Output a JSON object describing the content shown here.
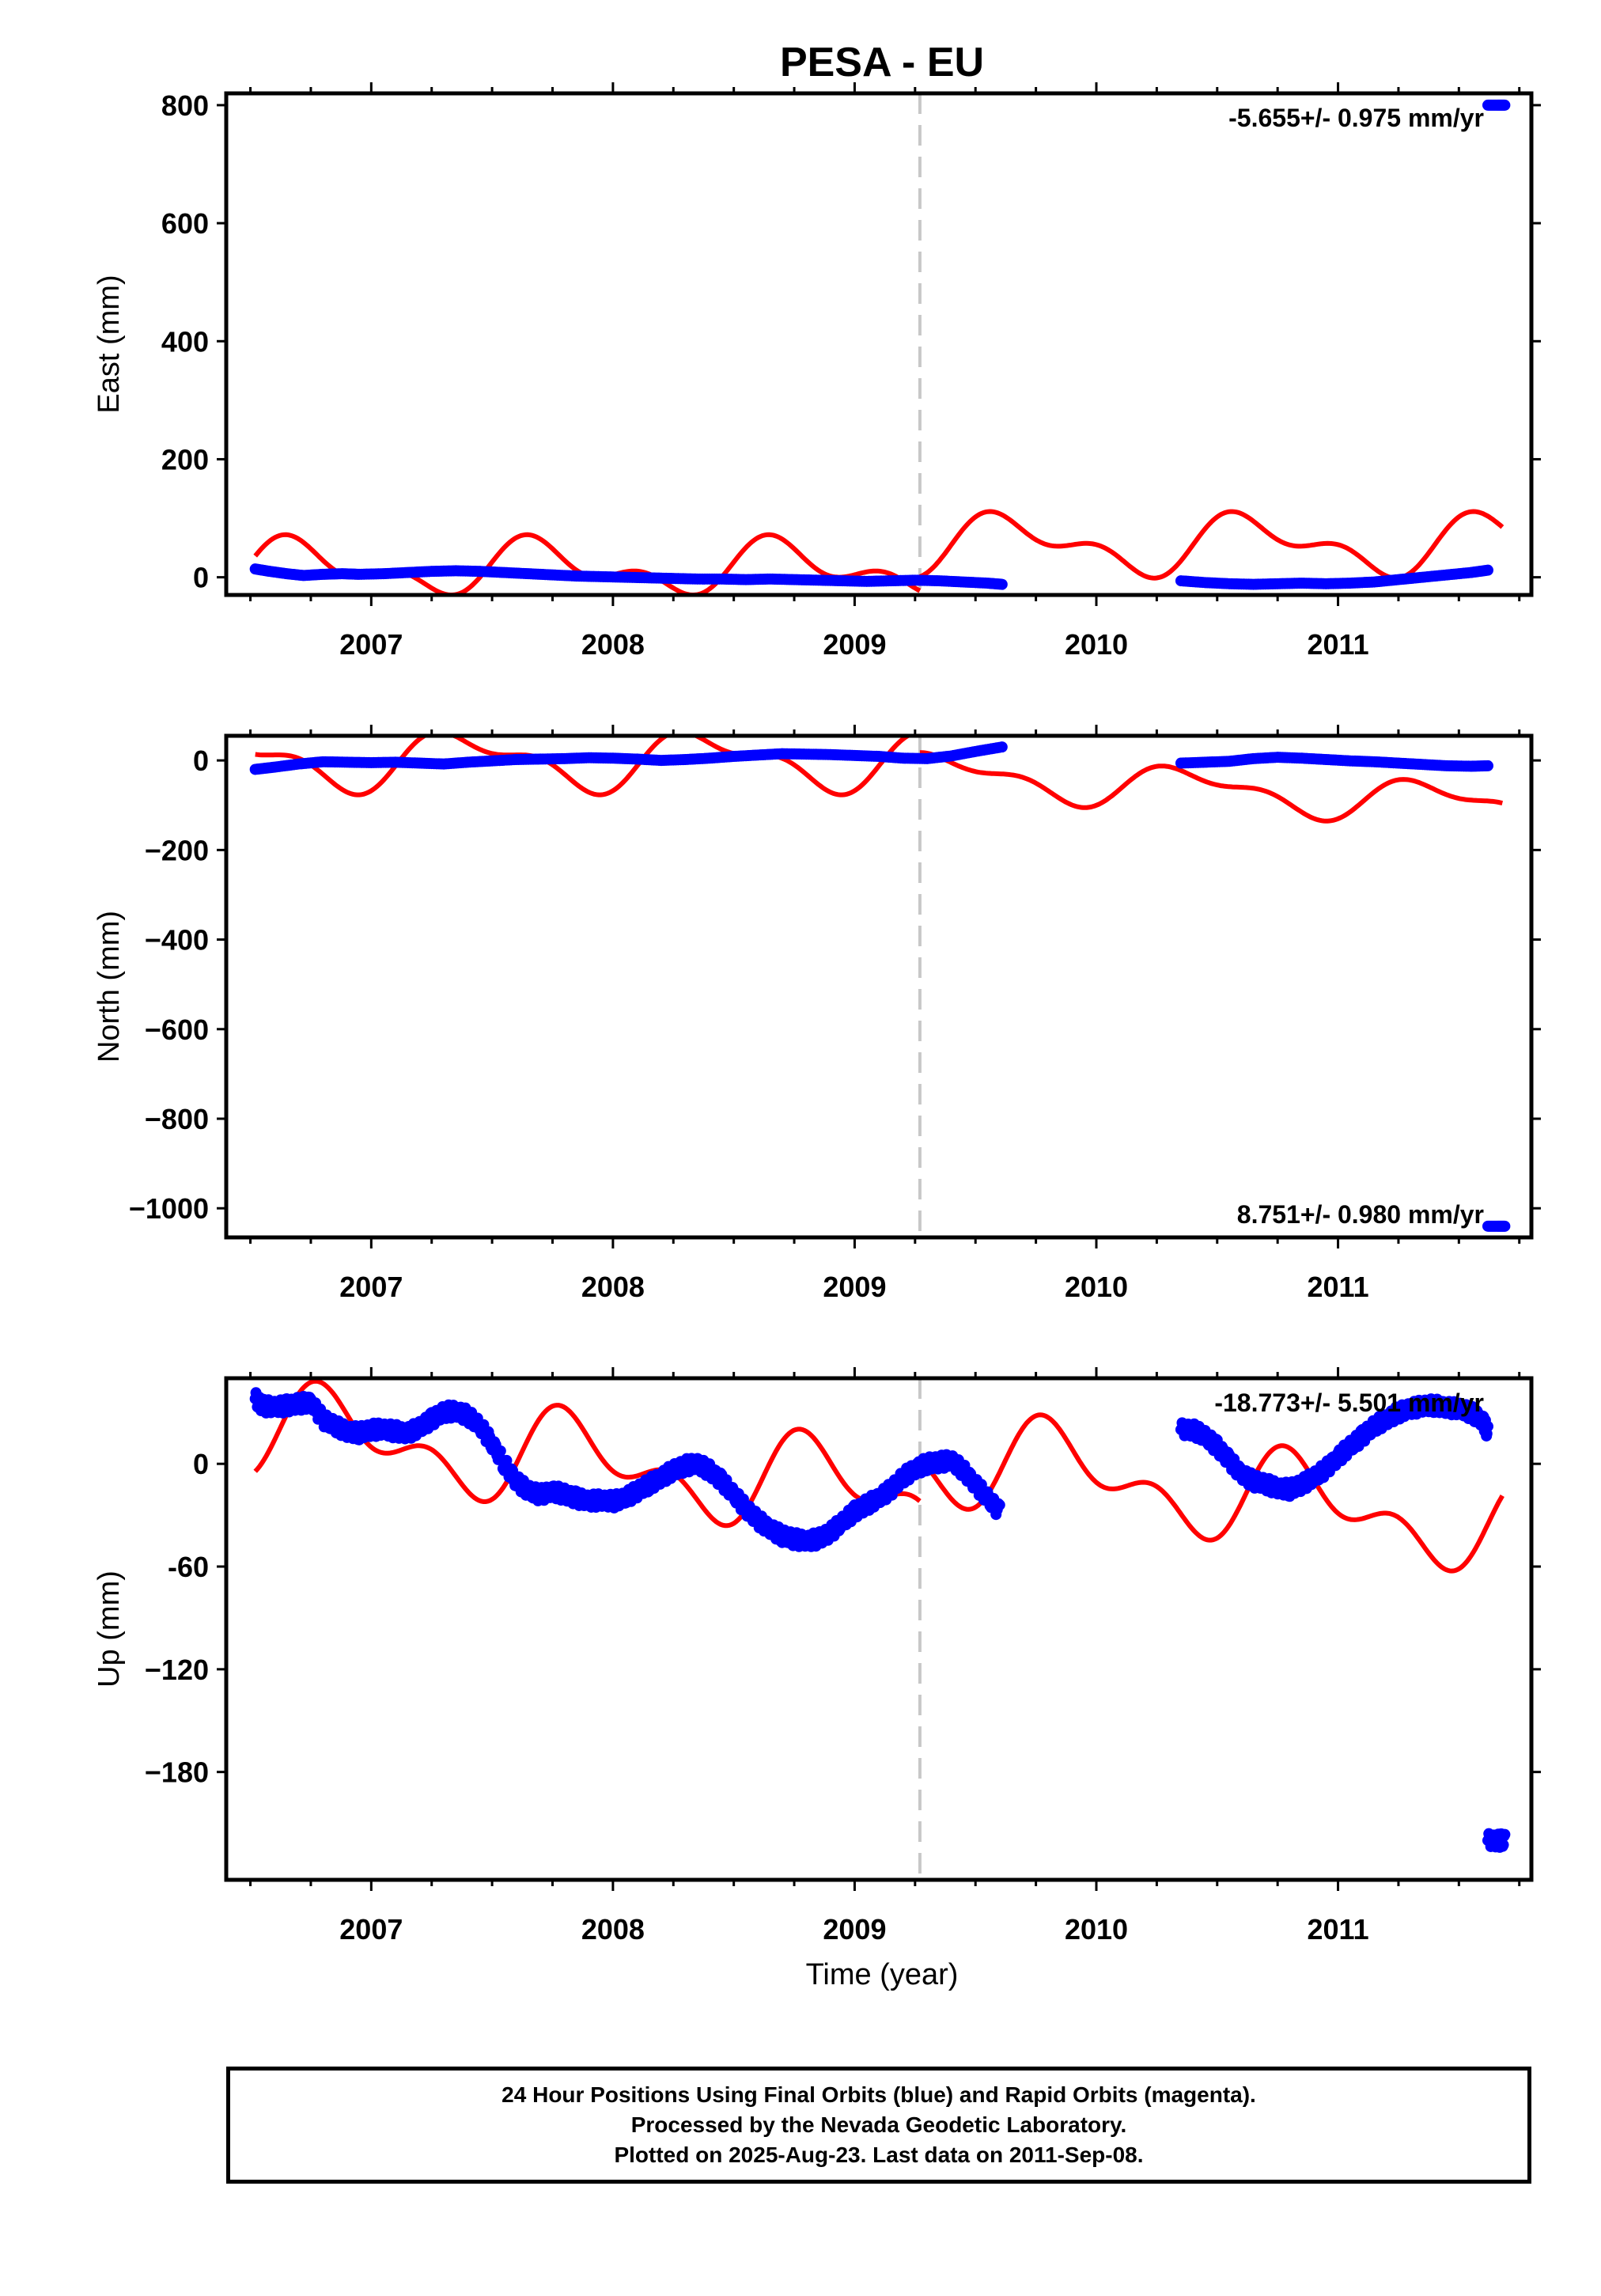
{
  "title": "PESA - EU",
  "colors": {
    "final": "#0000ff",
    "model": "#ff0000",
    "break": "#c8c8c8",
    "frame": "#000000"
  },
  "chart_data": [
    {
      "type": "scatter",
      "panel": "east",
      "ylabel": "East (mm)",
      "ylim": [
        -30,
        820
      ],
      "yticks": [
        0,
        200,
        400,
        600,
        800
      ],
      "ytick_labels": [
        "0",
        "200",
        "400",
        "600",
        "800"
      ],
      "xlim": [
        2006.4,
        2011.8
      ],
      "xticks": [
        2007,
        2008,
        2009,
        2010,
        2011
      ],
      "xtick_labels": [
        "2007",
        "2008",
        "2009",
        "2010",
        "2011"
      ],
      "rate_label": "-5.655+/- 0.975 mm/yr",
      "break_epoch": 2009.27,
      "series": [
        {
          "role": "final orbits",
          "color": "blue",
          "segments": [
            {
              "x": [
                2006.52,
                2006.58,
                2006.65,
                2006.72,
                2006.8,
                2006.88,
                2006.95,
                2007.05,
                2007.15,
                2007.25,
                2007.35,
                2007.45,
                2007.55,
                2007.65,
                2007.75,
                2007.85,
                2007.95,
                2008.05,
                2008.15,
                2008.25,
                2008.35,
                2008.45,
                2008.55,
                2008.65,
                2008.75,
                2008.85,
                2008.95,
                2009.05,
                2009.15,
                2009.25,
                2009.35,
                2009.45,
                2009.55,
                2009.61
              ],
              "y": [
                14,
                10,
                6,
                3,
                5,
                6,
                5,
                6,
                8,
                10,
                11,
                10,
                8,
                6,
                4,
                2,
                1,
                0,
                -1,
                -2,
                -3,
                -3,
                -4,
                -3,
                -4,
                -5,
                -6,
                -7,
                -6,
                -5,
                -6,
                -8,
                -10,
                -12
              ]
            },
            {
              "x": [
                2010.35,
                2010.45,
                2010.55,
                2010.65,
                2010.75,
                2010.85,
                2010.95,
                2011.05,
                2011.15,
                2011.25,
                2011.35,
                2011.45,
                2011.55,
                2011.62
              ],
              "y": [
                -6,
                -9,
                -11,
                -12,
                -11,
                -10,
                -11,
                -10,
                -8,
                -4,
                0,
                4,
                8,
                12
              ]
            }
          ]
        },
        {
          "role": "rapid orbits",
          "color": "blue",
          "segments": [
            {
              "x": [
                2011.62,
                2011.66,
                2011.69
              ],
              "y": [
                800,
                800,
                800
              ]
            }
          ]
        }
      ]
    },
    {
      "type": "scatter",
      "panel": "north",
      "ylabel": "North (mm)",
      "ylim": [
        -1065,
        55
      ],
      "yticks": [
        0,
        -200,
        -400,
        -600,
        -800,
        -1000
      ],
      "ytick_labels": [
        "0",
        "−200",
        "−400",
        "−600",
        "−800",
        "−1000"
      ],
      "xlim": [
        2006.4,
        2011.8
      ],
      "xticks": [
        2007,
        2008,
        2009,
        2010,
        2011
      ],
      "xtick_labels": [
        "2007",
        "2008",
        "2009",
        "2010",
        "2011"
      ],
      "rate_label": "8.751+/- 0.980 mm/yr",
      "break_epoch": 2009.27,
      "series": [
        {
          "role": "final orbits",
          "color": "blue",
          "segments": [
            {
              "x": [
                2006.52,
                2006.6,
                2006.7,
                2006.8,
                2006.9,
                2007.0,
                2007.1,
                2007.2,
                2007.3,
                2007.4,
                2007.5,
                2007.6,
                2007.7,
                2007.8,
                2007.9,
                2008.0,
                2008.1,
                2008.2,
                2008.3,
                2008.4,
                2008.5,
                2008.6,
                2008.7,
                2008.8,
                2008.9,
                2009.0,
                2009.1,
                2009.2,
                2009.3,
                2009.4,
                2009.5,
                2009.61
              ],
              "y": [
                -20,
                -15,
                -8,
                -3,
                -4,
                -5,
                -4,
                -6,
                -8,
                -4,
                -1,
                2,
                3,
                4,
                6,
                5,
                3,
                0,
                2,
                5,
                9,
                12,
                15,
                14,
                13,
                11,
                9,
                5,
                4,
                10,
                20,
                30
              ]
            },
            {
              "x": [
                2010.35,
                2010.45,
                2010.55,
                2010.65,
                2010.75,
                2010.85,
                2010.95,
                2011.05,
                2011.15,
                2011.25,
                2011.35,
                2011.45,
                2011.55,
                2011.62
              ],
              "y": [
                -6,
                -4,
                -2,
                4,
                7,
                5,
                2,
                -1,
                -3,
                -6,
                -9,
                -12,
                -13,
                -12
              ]
            }
          ]
        },
        {
          "role": "rapid orbits",
          "color": "blue",
          "segments": [
            {
              "x": [
                2011.62,
                2011.66,
                2011.69
              ],
              "y": [
                -1040,
                -1040,
                -1040
              ]
            }
          ]
        }
      ]
    },
    {
      "type": "scatter",
      "panel": "up",
      "ylabel": "Up (mm)",
      "ylim": [
        -243,
        50
      ],
      "yticks": [
        0,
        -60,
        -120,
        -180
      ],
      "ytick_labels": [
        "0",
        "-60",
        "−120",
        "−180"
      ],
      "xlim": [
        2006.4,
        2011.8
      ],
      "xticks": [
        2007,
        2008,
        2009,
        2010,
        2011
      ],
      "xtick_labels": [
        "2007",
        "2008",
        "2009",
        "2010",
        "2011"
      ],
      "rate_label": "-18.773+/- 5.501 mm/yr",
      "break_epoch": 2009.27,
      "series": [
        {
          "role": "final orbits",
          "color": "blue",
          "segments": [
            {
              "x": [
                2006.52,
                2006.55,
                2006.6,
                2006.65,
                2006.7,
                2006.75,
                2006.8,
                2006.85,
                2006.9,
                2006.95,
                2007.0,
                2007.05,
                2007.1,
                2007.15,
                2007.2,
                2007.25,
                2007.3,
                2007.35,
                2007.4,
                2007.45,
                2007.5,
                2007.55,
                2007.6,
                2007.65,
                2007.7,
                2007.75,
                2007.8,
                2007.85,
                2007.9,
                2007.95,
                2008.0,
                2008.05,
                2008.1,
                2008.15,
                2008.2,
                2008.25,
                2008.3,
                2008.35,
                2008.4,
                2008.45,
                2008.5,
                2008.55,
                2008.6,
                2008.65,
                2008.7,
                2008.75,
                2008.8,
                2008.85,
                2008.9,
                2008.95,
                2009.0,
                2009.05,
                2009.1,
                2009.15,
                2009.2,
                2009.25,
                2009.3,
                2009.35,
                2009.4,
                2009.45,
                2009.5,
                2009.55,
                2009.6
              ],
              "y": [
                38,
                34,
                33,
                34,
                35,
                36,
                26,
                22,
                19,
                18,
                20,
                20,
                19,
                18,
                21,
                26,
                30,
                31,
                28,
                22,
                12,
                0,
                -10,
                -16,
                -18,
                -16,
                -18,
                -20,
                -22,
                -21,
                -22,
                -20,
                -16,
                -12,
                -8,
                -4,
                -1,
                0,
                -4,
                -10,
                -18,
                -26,
                -33,
                -38,
                -42,
                -44,
                -45,
                -44,
                -40,
                -34,
                -28,
                -24,
                -20,
                -15,
                -8,
                -3,
                0,
                1,
                2,
                -4,
                -12,
                -20,
                -28
              ]
            },
            {
              "x": [
                2010.35,
                2010.4,
                2010.45,
                2010.5,
                2010.55,
                2010.6,
                2010.65,
                2010.7,
                2010.75,
                2010.8,
                2010.85,
                2010.9,
                2010.95,
                2011.0,
                2011.05,
                2011.1,
                2011.15,
                2011.2,
                2011.25,
                2011.3,
                2011.35,
                2011.4,
                2011.45,
                2011.5,
                2011.55,
                2011.6,
                2011.62
              ],
              "y": [
                20,
                20,
                16,
                10,
                2,
                -6,
                -10,
                -12,
                -14,
                -15,
                -12,
                -8,
                -3,
                4,
                10,
                16,
                22,
                26,
                30,
                32,
                34,
                34,
                33,
                32,
                30,
                25,
                18
              ]
            }
          ]
        },
        {
          "role": "rapid orbits",
          "color": "blue",
          "segments": [
            {
              "x": [
                2011.62,
                2011.66,
                2011.69
              ],
              "y": [
                -220,
                -220,
                -220
              ]
            }
          ]
        }
      ]
    }
  ],
  "x_axis_label": "Time (year)",
  "caption": {
    "line1": "24 Hour Positions Using Final Orbits (blue) and Rapid Orbits (magenta).",
    "line2": "Processed by the Nevada Geodetic Laboratory.",
    "line3": "Plotted on 2025-Aug-23. Last data on 2011-Sep-08."
  }
}
